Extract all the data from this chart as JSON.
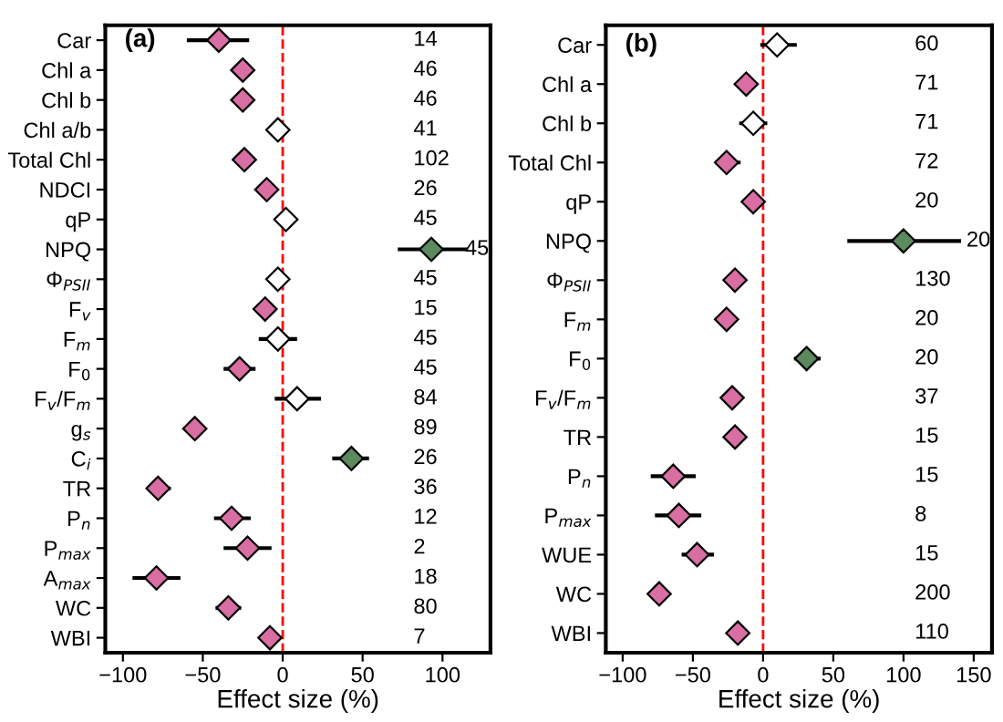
{
  "chart_data": [
    {
      "type": "scatter",
      "orientation": "horizontal",
      "title": "(a)",
      "xlabel": "Effect size (%)",
      "marker": "diamond",
      "grid": false,
      "categories": [
        "Car",
        "Chl a",
        "Chl b",
        "Chl a/b",
        "Total Chl",
        "NDCI",
        "qP",
        "NPQ",
        "Φ$_{PSII}$",
        "F$_{v}$",
        "F$_{m}$",
        "F$_{0}$",
        "F$_{v}$/F$_{m}$",
        "g$_{s}$",
        "C$_{i}$",
        "TR",
        "P$_{n}$",
        "P$_{max}$",
        "A$_{max}$",
        "WC",
        "WBI"
      ],
      "values": [
        -40,
        -25,
        -25,
        -3,
        -24,
        -10,
        2,
        93,
        -3,
        -11,
        -3,
        -27,
        9,
        -55,
        43,
        -78,
        -32,
        -22,
        -79,
        -34,
        -8
      ],
      "errors": [
        [
          -60,
          -21
        ],
        null,
        null,
        null,
        null,
        null,
        null,
        [
          72,
          116
        ],
        null,
        null,
        [
          -15,
          9
        ],
        [
          -37,
          -17
        ],
        [
          -5,
          24
        ],
        [
          -62,
          -48
        ],
        [
          31,
          54
        ],
        [
          -85,
          -70
        ],
        [
          -43,
          -20
        ],
        [
          -37,
          -7
        ],
        [
          -94,
          -64
        ],
        [
          -42,
          -26
        ],
        null
      ],
      "colors": [
        "#d96ea3",
        "#d96ea3",
        "#d96ea3",
        "#ffffff",
        "#d96ea3",
        "#d96ea3",
        "#ffffff",
        "#5b8a5e",
        "#ffffff",
        "#d96ea3",
        "#ffffff",
        "#d96ea3",
        "#ffffff",
        "#d96ea3",
        "#5b8a5e",
        "#d96ea3",
        "#d96ea3",
        "#d96ea3",
        "#d96ea3",
        "#d96ea3",
        "#d96ea3"
      ],
      "xlim": [
        -111,
        130
      ],
      "xticks": [
        -100,
        -50,
        0,
        50,
        100
      ],
      "ref_lines": [
        {
          "axis": "x",
          "value": 0,
          "color": "#ff0000",
          "line_style": "dashed"
        }
      ],
      "annotations": [
        "14",
        "46",
        "46",
        "41",
        "102",
        "26",
        "45",
        "45",
        "45",
        "15",
        "45",
        "45",
        "84",
        "89",
        "26",
        "36",
        "12",
        "2",
        "18",
        "80",
        "7"
      ]
    },
    {
      "type": "scatter",
      "orientation": "horizontal",
      "title": "(b)",
      "xlabel": "Effect size (%)",
      "marker": "diamond",
      "grid": false,
      "categories": [
        "Car",
        "Chl a",
        "Chl b",
        "Total Chl",
        "qP",
        "NPQ",
        "Φ$_{PSII}$",
        "F$_{m}$",
        "F$_{0}$",
        "F$_{v}$/F$_{m}$",
        "TR",
        "P$_{n}$",
        "P$_{max}$",
        "WUE",
        "WC",
        "WBI"
      ],
      "values": [
        10,
        -12,
        -7,
        -26,
        -7,
        100,
        -20,
        -26,
        31,
        -22,
        -20,
        -64,
        -60,
        -47,
        -74,
        -18
      ],
      "errors": [
        [
          -2,
          24
        ],
        [
          -20,
          -4
        ],
        [
          -17,
          3
        ],
        [
          -34,
          -16
        ],
        null,
        [
          60,
          141
        ],
        null,
        null,
        [
          22,
          41
        ],
        null,
        null,
        [
          -80,
          -48
        ],
        [
          -77,
          -44
        ],
        [
          -58,
          -35
        ],
        null,
        null
      ],
      "colors": [
        "#ffffff",
        "#d96ea3",
        "#ffffff",
        "#d96ea3",
        "#d96ea3",
        "#5b8a5e",
        "#d96ea3",
        "#d96ea3",
        "#5b8a5e",
        "#d96ea3",
        "#d96ea3",
        "#d96ea3",
        "#d96ea3",
        "#d96ea3",
        "#d96ea3",
        "#d96ea3"
      ],
      "xlim": [
        -112,
        163
      ],
      "xticks": [
        -100,
        -50,
        0,
        50,
        100,
        150
      ],
      "ref_lines": [
        {
          "axis": "x",
          "value": 0,
          "color": "#ff0000",
          "line_style": "dashed"
        }
      ],
      "annotations": [
        "60",
        "71",
        "71",
        "72",
        "20",
        "20",
        "130",
        "20",
        "20",
        "37",
        "15",
        "15",
        "8",
        "15",
        "200",
        "110"
      ]
    }
  ]
}
